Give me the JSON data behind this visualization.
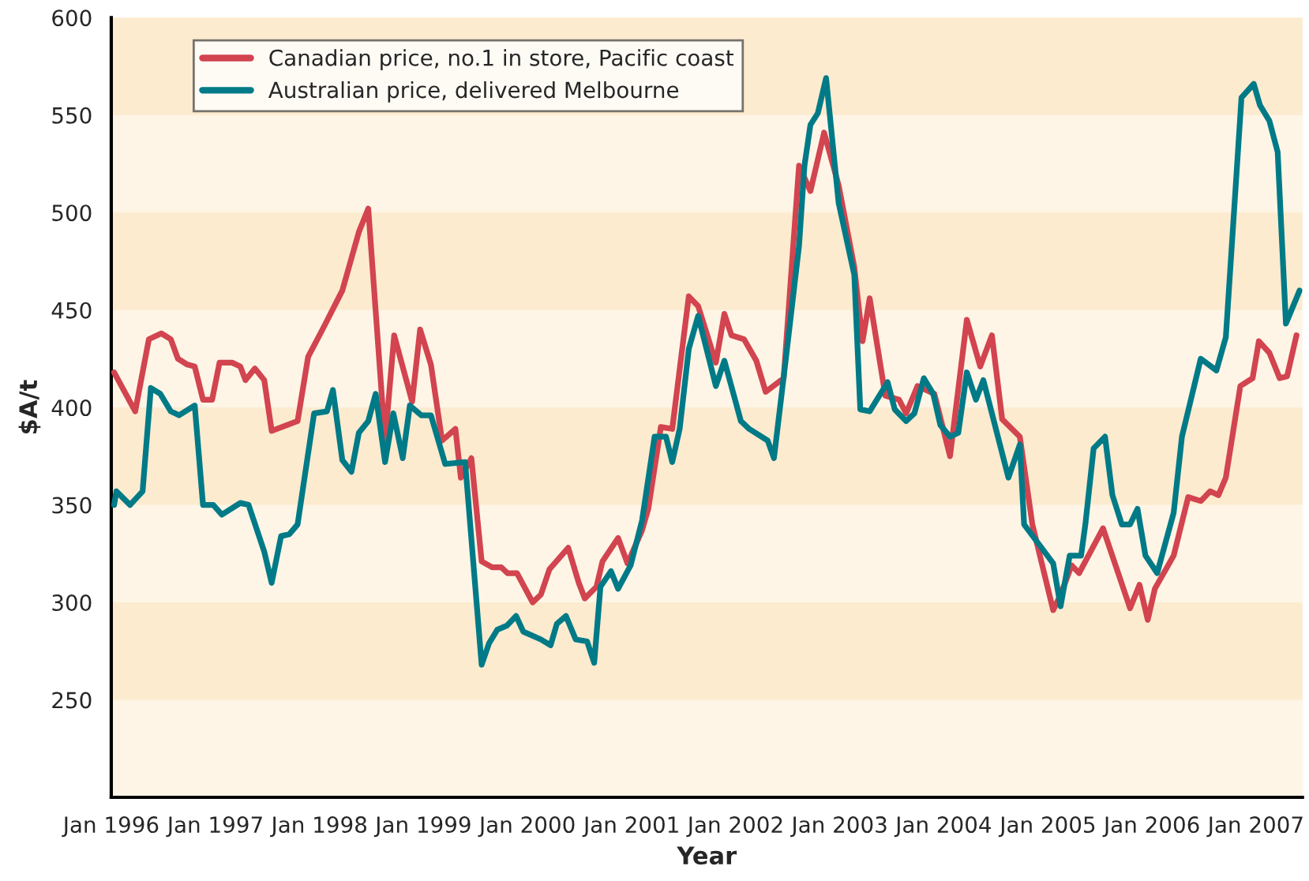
{
  "chart_data": {
    "type": "line",
    "xlabel": "Year",
    "ylabel": "$A/t",
    "xlim": [
      "1996-01-01",
      "2007-06-13"
    ],
    "xticks": [
      {
        "value": "1996-01-01",
        "label": "Jan 1996"
      },
      {
        "value": "1997-01-01",
        "label": "Jan 1997"
      },
      {
        "value": "1998-01-01",
        "label": "Jan 1998"
      },
      {
        "value": "1999-01-01",
        "label": "Jan 1999"
      },
      {
        "value": "2000-01-01",
        "label": "Jan 2000"
      },
      {
        "value": "2001-01-01",
        "label": "Jan 2001"
      },
      {
        "value": "2002-01-01",
        "label": "Jan 2002"
      },
      {
        "value": "2003-01-01",
        "label": "Jan 2003"
      },
      {
        "value": "2004-01-01",
        "label": "Jan 2004"
      },
      {
        "value": "2005-01-01",
        "label": "Jan 2005"
      },
      {
        "value": "2006-01-01",
        "label": "Jan 2006"
      },
      {
        "value": "2007-01-01",
        "label": "Jan 2007"
      }
    ],
    "ylim": [
      200,
      600
    ],
    "yticks": [
      {
        "value": 200,
        "label": null
      },
      250,
      300,
      350,
      400,
      450,
      500,
      550,
      600
    ],
    "legend": "top left",
    "marker": "none",
    "line_style": "solid",
    "bands": [
      {
        "axis": "y",
        "from": 250,
        "to": 300,
        "color": "#fdebcf"
      },
      {
        "axis": "y",
        "from": 350,
        "to": 400,
        "color": "#fdebcf"
      },
      {
        "axis": "y",
        "from": 450,
        "to": 500,
        "color": "#fdebcf"
      },
      {
        "axis": "y",
        "from": 550,
        "to": 600,
        "color": "#fdebcf"
      }
    ],
    "series": [
      {
        "name": "Canadian price, no.1 in store, Pacific coast",
        "color": "#d2444f",
        "x": [
          "1996-01-11",
          "1996-03-25",
          "1996-05-12",
          "1996-06-25",
          "1996-07-28",
          "1996-08-22",
          "1996-09-24",
          "1996-10-20",
          "1996-11-18",
          "1996-12-20",
          "1997-01-15",
          "1997-02-28",
          "1997-03-29",
          "1997-04-16",
          "1997-05-19",
          "1997-06-21",
          "1997-07-17",
          "1997-10-16",
          "1997-11-22",
          "1998-01-15",
          "1998-03-22",
          "1998-05-19",
          "1998-06-21",
          "1998-08-19",
          "1998-09-20",
          "1998-11-22",
          "1998-12-20",
          "1999-01-27",
          "1999-03-07",
          "1999-04-23",
          "1999-05-12",
          "1999-06-18",
          "1999-07-24",
          "1999-08-30",
          "1999-10-01",
          "1999-10-23",
          "1999-11-25",
          "2000-01-19",
          "2000-02-17",
          "2000-03-18",
          "2000-05-23",
          "2000-06-29",
          "2000-07-20",
          "2000-08-30",
          "2000-09-20",
          "2000-11-14",
          "2000-12-17",
          "2001-02-06",
          "2001-02-28",
          "2001-04-13",
          "2001-05-23",
          "2001-07-20",
          "2001-08-22",
          "2001-10-23",
          "2001-11-22",
          "2001-12-17",
          "2002-01-30",
          "2002-03-14",
          "2002-04-16",
          "2002-06-18",
          "2002-08-11",
          "2002-09-20",
          "2002-11-07",
          "2002-12-28",
          "2003-02-21",
          "2003-03-22",
          "2003-04-16",
          "2003-06-10",
          "2003-07-28",
          "2003-08-22",
          "2003-10-01",
          "2003-11-29",
          "2004-01-23",
          "2004-03-22",
          "2004-05-08",
          "2004-06-18",
          "2004-07-24",
          "2004-09-24",
          "2004-11-07",
          "2005-01-19",
          "2005-02-14",
          "2005-03-25",
          "2005-04-20",
          "2005-07-13",
          "2005-10-16",
          "2005-11-18",
          "2005-12-17",
          "2006-01-11",
          "2006-03-18",
          "2006-05-08",
          "2006-06-21",
          "2006-07-24",
          "2006-08-22",
          "2006-09-17",
          "2006-11-07",
          "2006-12-20",
          "2007-01-11",
          "2007-02-17",
          "2007-03-25",
          "2007-04-20",
          "2007-05-23"
        ],
        "values": [
          418,
          398,
          435,
          438,
          435,
          425,
          422,
          421,
          404,
          404,
          423,
          423,
          421,
          414,
          420,
          414,
          388,
          393,
          426,
          441,
          460,
          490,
          502,
          383,
          437,
          403,
          440,
          422,
          383,
          389,
          364,
          374,
          321,
          318,
          318,
          315,
          315,
          300,
          304,
          317,
          328,
          310,
          302,
          308,
          321,
          333,
          320,
          337,
          348,
          390,
          389,
          457,
          452,
          423,
          448,
          437,
          435,
          424,
          408,
          415,
          524,
          511,
          541,
          514,
          472,
          434,
          456,
          406,
          404,
          397,
          411,
          407,
          375,
          445,
          421,
          437,
          394,
          385,
          340,
          296,
          304,
          319,
          315,
          338,
          297,
          309,
          291,
          307,
          324,
          354,
          352,
          357,
          355,
          364,
          411,
          415,
          434,
          428,
          415,
          416,
          437
        ]
      },
      {
        "name": "Australian price, delivered Melbourne",
        "color": "#007a87",
        "x": [
          "1996-01-11",
          "1996-01-19",
          "1996-03-07",
          "1996-04-20",
          "1996-05-19",
          "1996-06-21",
          "1996-07-28",
          "1996-08-26",
          "1996-10-20",
          "1996-11-18",
          "1996-12-24",
          "1997-01-23",
          "1997-03-29",
          "1997-04-27",
          "1997-06-21",
          "1997-07-17",
          "1997-08-19",
          "1997-09-17",
          "1997-10-16",
          "1997-12-13",
          "1998-01-27",
          "1998-02-17",
          "1998-03-22",
          "1998-04-23",
          "1998-05-19",
          "1998-06-21",
          "1998-07-17",
          "1998-08-19",
          "1998-09-17",
          "1998-10-20",
          "1998-11-14",
          "1998-12-24",
          "1999-01-27",
          "1999-03-18",
          "1999-05-27",
          "1999-07-24",
          "1999-08-19",
          "1999-09-17",
          "1999-10-20",
          "1999-11-22",
          "1999-12-17",
          "2000-02-17",
          "2000-03-22",
          "2000-04-13",
          "2000-05-15",
          "2000-06-18",
          "2000-07-28",
          "2000-08-22",
          "2000-09-13",
          "2000-10-20",
          "2000-11-14",
          "2000-12-28",
          "2001-02-06",
          "2001-03-22",
          "2001-05-01",
          "2001-05-23",
          "2001-06-18",
          "2001-07-20",
          "2001-08-22",
          "2001-10-23",
          "2001-11-22",
          "2002-01-19",
          "2002-02-17",
          "2002-04-23",
          "2002-05-15",
          "2002-06-25",
          "2002-08-11",
          "2002-08-30",
          "2002-09-20",
          "2002-10-16",
          "2002-11-14",
          "2002-12-28",
          "2003-02-21",
          "2003-03-14",
          "2003-04-16",
          "2003-06-18",
          "2003-07-13",
          "2003-08-22",
          "2003-09-20",
          "2003-10-23",
          "2003-11-25",
          "2003-12-20",
          "2004-01-23",
          "2004-02-21",
          "2004-03-22",
          "2004-04-23",
          "2004-05-19",
          "2004-08-15",
          "2004-09-24",
          "2004-10-09",
          "2005-01-19",
          "2005-02-14",
          "2005-03-18",
          "2005-04-27",
          "2005-05-12",
          "2005-06-10",
          "2005-07-20",
          "2005-08-15",
          "2005-09-17",
          "2005-10-16",
          "2005-11-11",
          "2005-12-09",
          "2006-01-19",
          "2006-03-18",
          "2006-04-16",
          "2006-06-21",
          "2006-08-15",
          "2006-09-17",
          "2006-11-11",
          "2006-12-24",
          "2007-01-15",
          "2007-02-17",
          "2007-03-18",
          "2007-04-16",
          "2007-06-03"
        ],
        "values": [
          350,
          357,
          350,
          357,
          410,
          407,
          398,
          396,
          401,
          350,
          350,
          345,
          351,
          350,
          326,
          310,
          334,
          335,
          340,
          397,
          398,
          409,
          373,
          367,
          387,
          393,
          407,
          372,
          397,
          374,
          401,
          396,
          396,
          371,
          372,
          268,
          279,
          286,
          288,
          293,
          285,
          281,
          278,
          289,
          293,
          281,
          280,
          269,
          308,
          316,
          307,
          319,
          342,
          385,
          385,
          372,
          389,
          430,
          447,
          411,
          424,
          393,
          389,
          383,
          374,
          424,
          483,
          524,
          545,
          551,
          569,
          505,
          468,
          399,
          398,
          413,
          399,
          393,
          397,
          415,
          407,
          391,
          385,
          387,
          418,
          404,
          414,
          364,
          381,
          340,
          320,
          298,
          324,
          324,
          340,
          379,
          385,
          355,
          340,
          340,
          348,
          324,
          315,
          346,
          385,
          425,
          419,
          436,
          559,
          566,
          555,
          547,
          531,
          443,
          460
        ]
      }
    ]
  }
}
